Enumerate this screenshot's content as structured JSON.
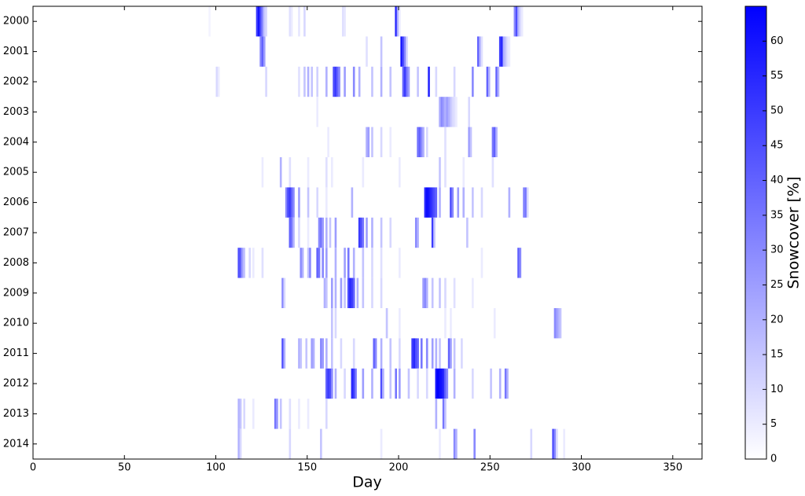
{
  "chart_data": {
    "type": "heatmap",
    "x_label": "Day",
    "colorbar_label": "Snowcover [%]",
    "xlim": [
      0,
      366
    ],
    "xticks": [
      0,
      50,
      100,
      150,
      200,
      250,
      300,
      350
    ],
    "clim": [
      0,
      65
    ],
    "cticks": [
      0,
      5,
      10,
      15,
      20,
      25,
      30,
      35,
      40,
      45,
      50,
      55,
      60
    ],
    "cmap": [
      "#ffffff",
      "#0000ff"
    ],
    "series": [
      {
        "name": "2000",
        "x": [
          96,
          122,
          123,
          124,
          125,
          126,
          127,
          140,
          141,
          145,
          148,
          169,
          170,
          198,
          199,
          200,
          263,
          264,
          265,
          266,
          267
        ],
        "values": [
          3,
          50,
          60,
          45,
          30,
          15,
          10,
          8,
          5,
          6,
          10,
          8,
          6,
          55,
          20,
          5,
          30,
          45,
          20,
          10,
          5
        ]
      },
      {
        "name": "2001",
        "x": [
          124,
          125,
          126,
          182,
          190,
          201,
          202,
          203,
          204,
          243,
          244,
          245,
          255,
          256,
          257,
          258,
          259,
          260
        ],
        "values": [
          30,
          40,
          25,
          8,
          15,
          60,
          45,
          30,
          10,
          40,
          20,
          8,
          50,
          55,
          20,
          15,
          8,
          5
        ]
      },
      {
        "name": "2002",
        "x": [
          100,
          101,
          127,
          145,
          148,
          150,
          152,
          155,
          160,
          164,
          165,
          166,
          167,
          170,
          175,
          178,
          185,
          190,
          195,
          202,
          203,
          204,
          205,
          210,
          216,
          220,
          230,
          240,
          248,
          249,
          253,
          254
        ],
        "values": [
          10,
          5,
          10,
          8,
          15,
          20,
          15,
          12,
          20,
          45,
          50,
          40,
          30,
          25,
          30,
          20,
          15,
          20,
          15,
          40,
          50,
          35,
          25,
          15,
          55,
          10,
          10,
          30,
          40,
          20,
          40,
          20
        ]
      },
      {
        "name": "2003",
        "x": [
          155,
          222,
          223,
          224,
          225,
          226,
          227,
          228,
          229,
          230,
          231,
          238
        ],
        "values": [
          5,
          20,
          30,
          25,
          20,
          25,
          20,
          15,
          10,
          8,
          5,
          10
        ]
      },
      {
        "name": "2004",
        "x": [
          161,
          182,
          183,
          185,
          190,
          195,
          210,
          211,
          212,
          213,
          215,
          225,
          238,
          239,
          251,
          252,
          253
        ],
        "values": [
          5,
          20,
          25,
          15,
          10,
          5,
          35,
          40,
          30,
          20,
          10,
          8,
          25,
          15,
          35,
          40,
          20
        ]
      },
      {
        "name": "2005",
        "x": [
          125,
          135,
          140,
          150,
          160,
          163,
          180,
          200,
          222,
          225,
          235,
          251
        ],
        "values": [
          5,
          20,
          8,
          5,
          8,
          5,
          5,
          5,
          15,
          8,
          5,
          8
        ]
      },
      {
        "name": "2006",
        "x": [
          138,
          139,
          140,
          141,
          142,
          145,
          150,
          155,
          160,
          174,
          214,
          215,
          216,
          217,
          218,
          219,
          220,
          222,
          228,
          229,
          232,
          235,
          240,
          245,
          260,
          268,
          269,
          270
        ],
        "values": [
          30,
          45,
          50,
          40,
          30,
          25,
          15,
          10,
          5,
          20,
          55,
          62,
          60,
          55,
          50,
          45,
          40,
          20,
          45,
          30,
          25,
          20,
          15,
          10,
          20,
          30,
          35,
          10
        ]
      },
      {
        "name": "2007",
        "x": [
          140,
          141,
          142,
          145,
          150,
          156,
          157,
          158,
          160,
          162,
          165,
          178,
          179,
          180,
          182,
          185,
          190,
          195,
          209,
          210,
          218,
          219,
          237
        ],
        "values": [
          40,
          35,
          20,
          10,
          5,
          30,
          35,
          25,
          20,
          15,
          25,
          50,
          45,
          35,
          25,
          20,
          15,
          10,
          30,
          20,
          50,
          15,
          15
        ]
      },
      {
        "name": "2008",
        "x": [
          112,
          113,
          114,
          115,
          118,
          120,
          125,
          146,
          147,
          150,
          151,
          155,
          156,
          158,
          160,
          165,
          170,
          172,
          175,
          180,
          185,
          190,
          200,
          245,
          265,
          266
        ],
        "values": [
          45,
          40,
          25,
          15,
          10,
          5,
          8,
          30,
          20,
          15,
          30,
          40,
          35,
          30,
          25,
          20,
          25,
          35,
          20,
          15,
          10,
          8,
          5,
          5,
          40,
          30
        ]
      },
      {
        "name": "2009",
        "x": [
          136,
          137,
          159,
          160,
          163,
          165,
          168,
          170,
          172,
          173,
          174,
          175,
          177,
          180,
          185,
          190,
          213,
          214,
          215,
          218,
          222,
          225,
          230,
          240
        ],
        "values": [
          30,
          10,
          20,
          15,
          25,
          20,
          25,
          15,
          45,
          55,
          50,
          40,
          20,
          15,
          10,
          10,
          25,
          30,
          20,
          15,
          15,
          10,
          8,
          5
        ]
      },
      {
        "name": "2010",
        "x": [
          163,
          165,
          193,
          200,
          225,
          228,
          252,
          285,
          286,
          287,
          288
        ],
        "values": [
          15,
          10,
          15,
          5,
          5,
          5,
          5,
          30,
          25,
          20,
          15
        ]
      },
      {
        "name": "2011",
        "x": [
          136,
          137,
          145,
          146,
          149,
          152,
          153,
          157,
          158,
          160,
          163,
          168,
          175,
          186,
          187,
          190,
          195,
          200,
          207,
          208,
          209,
          210,
          212,
          215,
          218,
          220,
          222,
          227,
          228,
          230,
          234
        ],
        "values": [
          45,
          20,
          20,
          15,
          15,
          25,
          20,
          30,
          25,
          20,
          15,
          10,
          10,
          40,
          30,
          20,
          15,
          10,
          50,
          55,
          45,
          40,
          35,
          30,
          25,
          20,
          15,
          40,
          25,
          15,
          10
        ]
      },
      {
        "name": "2012",
        "x": [
          160,
          161,
          162,
          163,
          165,
          170,
          174,
          175,
          176,
          180,
          185,
          190,
          191,
          195,
          198,
          200,
          205,
          210,
          215,
          220,
          221,
          222,
          223,
          224,
          225,
          226,
          230,
          240,
          250,
          255,
          258,
          259
        ],
        "values": [
          40,
          50,
          45,
          30,
          20,
          10,
          55,
          50,
          35,
          25,
          20,
          45,
          20,
          15,
          35,
          25,
          15,
          10,
          10,
          60,
          65,
          62,
          60,
          55,
          40,
          30,
          20,
          10,
          15,
          20,
          35,
          20
        ]
      },
      {
        "name": "2013",
        "x": [
          112,
          113,
          115,
          120,
          132,
          133,
          135,
          140,
          145,
          150,
          160,
          220,
          224,
          225
        ],
        "values": [
          20,
          15,
          10,
          5,
          35,
          25,
          15,
          8,
          5,
          5,
          10,
          20,
          35,
          15
        ]
      },
      {
        "name": "2014",
        "x": [
          112,
          113,
          140,
          157,
          190,
          222,
          230,
          231,
          241,
          272,
          284,
          285,
          286,
          290
        ],
        "values": [
          20,
          10,
          10,
          15,
          5,
          5,
          30,
          20,
          30,
          10,
          45,
          30,
          10,
          5
        ]
      }
    ]
  }
}
